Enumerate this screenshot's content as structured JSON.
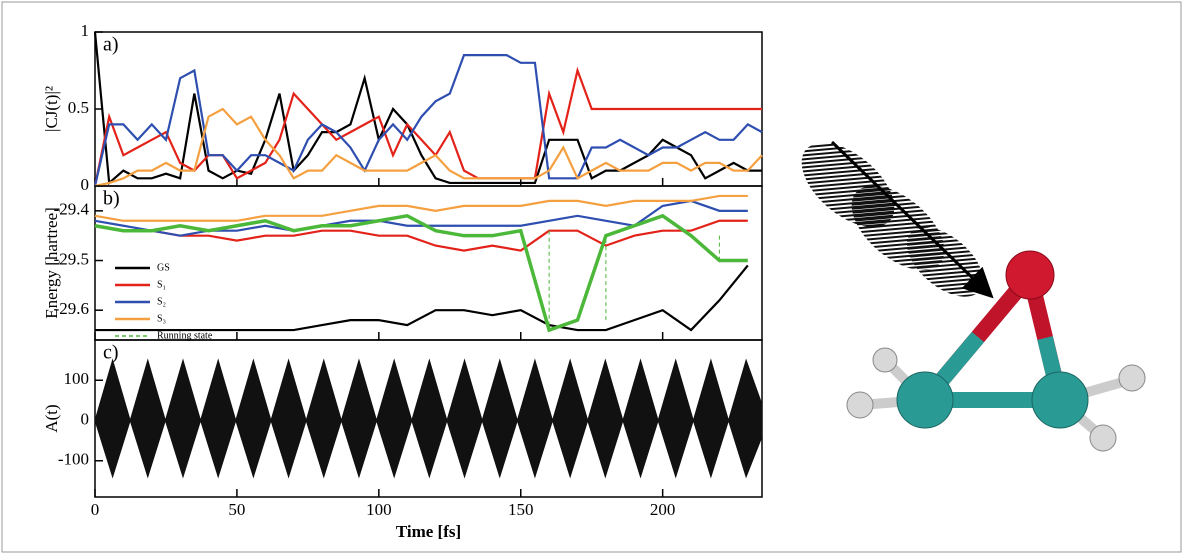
{
  "chart_data": [
    {
      "type": "line",
      "panel_label": "a)",
      "ylabel": "|CJ(t)|²",
      "x": [
        0,
        5,
        10,
        15,
        20,
        25,
        30,
        35,
        40,
        45,
        50,
        55,
        60,
        65,
        70,
        75,
        80,
        85,
        90,
        95,
        100,
        105,
        110,
        115,
        120,
        125,
        130,
        135,
        140,
        145,
        150,
        155,
        160,
        165,
        170,
        175,
        180,
        185,
        190,
        195,
        200,
        205,
        210,
        215,
        220,
        225,
        230,
        235
      ],
      "ylim": [
        0,
        1
      ],
      "yticks": [
        0,
        0.5,
        1
      ],
      "series": [
        {
          "name": "GS",
          "color": "#000000",
          "values": [
            1,
            0.02,
            0.1,
            0.05,
            0.05,
            0.08,
            0.05,
            0.6,
            0.1,
            0.05,
            0.1,
            0.08,
            0.3,
            0.6,
            0.1,
            0.2,
            0.35,
            0.35,
            0.4,
            0.7,
            0.3,
            0.5,
            0.4,
            0.2,
            0.05,
            0.02,
            0.02,
            0.02,
            0.02,
            0.02,
            0.02,
            0.02,
            0.3,
            0.3,
            0.3,
            0.05,
            0.1,
            0.1,
            0.15,
            0.2,
            0.3,
            0.25,
            0.2,
            0.05,
            0.1,
            0.15,
            0.1,
            0.1
          ]
        },
        {
          "name": "S₁",
          "color": "#e32219",
          "values": [
            0,
            0.45,
            0.2,
            0.25,
            0.3,
            0.35,
            0.15,
            0.1,
            0.2,
            0.2,
            0.05,
            0.1,
            0.15,
            0.3,
            0.6,
            0.5,
            0.4,
            0.3,
            0.35,
            0.4,
            0.45,
            0.2,
            0.4,
            0.3,
            0.2,
            0.35,
            0.1,
            0.05,
            0.05,
            0.05,
            0.05,
            0.05,
            0.6,
            0.35,
            0.75,
            0.5,
            0.5,
            0.5,
            0.5,
            0.5,
            0.5,
            0.5,
            0.5,
            0.5,
            0.5,
            0.5,
            0.5,
            0.5
          ]
        },
        {
          "name": "S₂",
          "color": "#2f4fb0",
          "values": [
            0,
            0.4,
            0.4,
            0.3,
            0.4,
            0.3,
            0.7,
            0.75,
            0.2,
            0.2,
            0.1,
            0.2,
            0.2,
            0.15,
            0.1,
            0.3,
            0.4,
            0.35,
            0.25,
            0.1,
            0.3,
            0.4,
            0.3,
            0.45,
            0.55,
            0.6,
            0.85,
            0.85,
            0.85,
            0.85,
            0.8,
            0.8,
            0.05,
            0.05,
            0.05,
            0.25,
            0.25,
            0.3,
            0.25,
            0.2,
            0.25,
            0.25,
            0.3,
            0.35,
            0.3,
            0.3,
            0.4,
            0.35
          ]
        },
        {
          "name": "S₃",
          "color": "#f5a040",
          "values": [
            0,
            0.02,
            0.05,
            0.1,
            0.1,
            0.15,
            0.1,
            0.1,
            0.45,
            0.5,
            0.4,
            0.45,
            0.3,
            0.2,
            0.05,
            0.1,
            0.1,
            0.2,
            0.15,
            0.1,
            0.1,
            0.1,
            0.1,
            0.15,
            0.2,
            0.1,
            0.05,
            0.05,
            0.05,
            0.05,
            0.05,
            0.05,
            0.1,
            0.25,
            0.05,
            0.1,
            0.15,
            0.1,
            0.1,
            0.1,
            0.15,
            0.15,
            0.1,
            0.15,
            0.15,
            0.1,
            0.1,
            0.2
          ]
        }
      ]
    },
    {
      "type": "line",
      "panel_label": "b)",
      "ylabel": "Energy [hartree]",
      "x": [
        0,
        10,
        20,
        30,
        40,
        50,
        60,
        70,
        80,
        90,
        100,
        110,
        120,
        130,
        140,
        150,
        160,
        170,
        180,
        190,
        200,
        210,
        220,
        230
      ],
      "ylim": [
        -29.66,
        -29.35
      ],
      "yticks": [
        -29.4,
        -29.5,
        -29.6
      ],
      "legend": "lower left",
      "series": [
        {
          "name": "GS",
          "color": "#000000",
          "values": [
            -29.64,
            -29.64,
            -29.64,
            -29.64,
            -29.64,
            -29.64,
            -29.64,
            -29.64,
            -29.63,
            -29.62,
            -29.62,
            -29.63,
            -29.6,
            -29.6,
            -29.61,
            -29.6,
            -29.63,
            -29.64,
            -29.64,
            -29.62,
            -29.6,
            -29.64,
            -29.58,
            -29.51
          ]
        },
        {
          "name": "S₁",
          "color": "#e32219",
          "values": [
            -29.43,
            -29.44,
            -29.44,
            -29.45,
            -29.45,
            -29.46,
            -29.45,
            -29.45,
            -29.44,
            -29.44,
            -29.45,
            -29.45,
            -29.47,
            -29.48,
            -29.47,
            -29.48,
            -29.44,
            -29.44,
            -29.47,
            -29.45,
            -29.44,
            -29.44,
            -29.42,
            -29.42
          ]
        },
        {
          "name": "S₂",
          "color": "#2f4fb0",
          "values": [
            -29.42,
            -29.43,
            -29.44,
            -29.45,
            -29.44,
            -29.44,
            -29.43,
            -29.44,
            -29.43,
            -29.42,
            -29.42,
            -29.43,
            -29.43,
            -29.43,
            -29.43,
            -29.43,
            -29.42,
            -29.41,
            -29.42,
            -29.43,
            -29.39,
            -29.38,
            -29.4,
            -29.4
          ]
        },
        {
          "name": "S₃",
          "color": "#f5a040",
          "values": [
            -29.41,
            -29.42,
            -29.42,
            -29.42,
            -29.42,
            -29.42,
            -29.41,
            -29.41,
            -29.41,
            -29.4,
            -29.39,
            -29.39,
            -29.4,
            -29.39,
            -29.39,
            -29.39,
            -29.38,
            -29.38,
            -29.39,
            -29.38,
            -29.38,
            -29.38,
            -29.37,
            -29.37
          ]
        },
        {
          "name": "Running state",
          "color": "#4cb83a",
          "dashed": true,
          "values": [
            -29.43,
            -29.44,
            -29.44,
            -29.43,
            -29.44,
            -29.43,
            -29.42,
            -29.44,
            -29.43,
            -29.43,
            -29.42,
            -29.41,
            -29.44,
            -29.45,
            -29.45,
            -29.44,
            -29.64,
            -29.62,
            -29.45,
            -29.43,
            -29.41,
            -29.45,
            -29.5,
            -29.5
          ]
        }
      ]
    },
    {
      "type": "area",
      "panel_label": "c)",
      "ylabel": "A(t)",
      "xlabel": "Time [fs]",
      "x": [
        0,
        6.2,
        12.4,
        18.6,
        24.8,
        31,
        37.2,
        43.4,
        49.6,
        55.8,
        62,
        68.2,
        74.4,
        80.6,
        86.8,
        93,
        99.2,
        105.4,
        111.6,
        117.8,
        124,
        130.2,
        136.4,
        142.6,
        148.8,
        155,
        161.2,
        167.4,
        173.6,
        179.8,
        186,
        192.2,
        198.4,
        204.6,
        210.8,
        217,
        223.2,
        229.4,
        235
      ],
      "xlim": [
        0,
        235
      ],
      "xticks": [
        0,
        50,
        100,
        150,
        200
      ],
      "ylim": [
        -190,
        200
      ],
      "yticks": [
        100,
        0,
        -100
      ],
      "series": [
        {
          "color": "#111111",
          "values": [
            0,
            150,
            0,
            150,
            0,
            150,
            0,
            150,
            0,
            150,
            0,
            150,
            0,
            150,
            0,
            150,
            0,
            150,
            0,
            150,
            0,
            150,
            0,
            150,
            0,
            150,
            0,
            150,
            0,
            150,
            0,
            150,
            0,
            150,
            0,
            150,
            0,
            150,
            40
          ]
        },
        {
          "color": "#111111",
          "values": [
            0,
            -140,
            0,
            -140,
            0,
            -140,
            0,
            -140,
            0,
            -140,
            0,
            -140,
            0,
            -140,
            0,
            -140,
            0,
            -140,
            0,
            -140,
            0,
            -140,
            0,
            -140,
            0,
            -140,
            0,
            -140,
            0,
            -140,
            0,
            -140,
            0,
            -140,
            0,
            -140,
            0,
            -140,
            -40
          ]
        }
      ]
    }
  ]
}
